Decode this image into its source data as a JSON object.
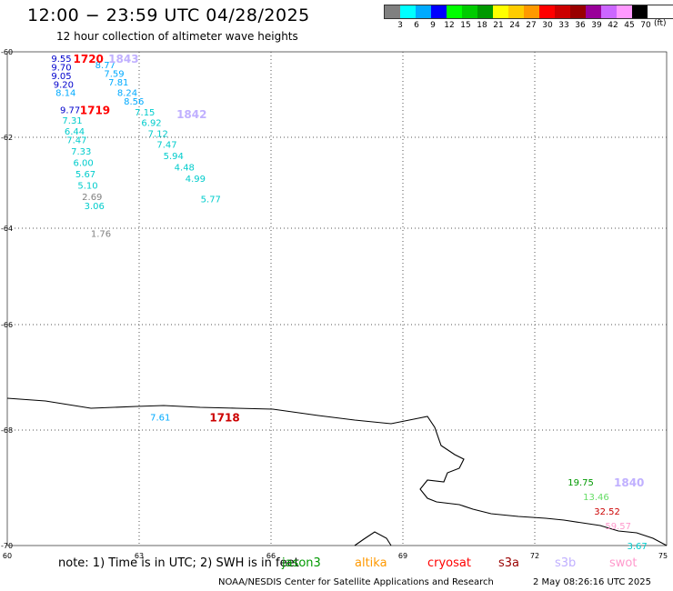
{
  "title": "12:00 − 23:59 UTC 04/28/2025",
  "subtitle": "12 hour collection of altimeter wave heights",
  "legend": {
    "colors": [
      "#808080",
      "#00ffff",
      "#00aaff",
      "#0000ff",
      "#00ff00",
      "#00cc00",
      "#009900",
      "#ffff00",
      "#ffcc00",
      "#ff9900",
      "#ff0000",
      "#cc0000",
      "#990000",
      "#990099",
      "#cc66ff",
      "#ff99ff",
      "#000000"
    ],
    "labels": [
      "3",
      "6",
      "9",
      "12",
      "15",
      "18",
      "21",
      "24",
      "27",
      "30",
      "33",
      "36",
      "39",
      "42",
      "45",
      "70"
    ],
    "unit": "(ft)"
  },
  "axes": {
    "lon_labels": [
      "60",
      "63",
      "66",
      "69",
      "72",
      "75"
    ],
    "lat_labels": [
      "-60",
      "-62",
      "-64",
      "-66",
      "-68",
      "-70"
    ]
  },
  "observations": [
    {
      "text": "9.55",
      "color": "#0000cc",
      "lon": 61.0,
      "lat": -60.15
    },
    {
      "text": "9.70",
      "color": "#0000cc",
      "lon": 61.0,
      "lat": -60.35
    },
    {
      "text": "9.05",
      "color": "#0000cc",
      "lon": 61.0,
      "lat": -60.55
    },
    {
      "text": "9.20",
      "color": "#0000cc",
      "lon": 61.05,
      "lat": -60.75
    },
    {
      "text": "8.14",
      "color": "#00aaff",
      "lon": 61.1,
      "lat": -60.95
    },
    {
      "text": "8.77",
      "color": "#00aaff",
      "lon": 62.0,
      "lat": -60.3
    },
    {
      "text": "7.59",
      "color": "#00aaff",
      "lon": 62.2,
      "lat": -60.5
    },
    {
      "text": "7.81",
      "color": "#00aaff",
      "lon": 62.3,
      "lat": -60.7
    },
    {
      "text": "8.24",
      "color": "#00aaff",
      "lon": 62.5,
      "lat": -60.95
    },
    {
      "text": "8.56",
      "color": "#00aaff",
      "lon": 62.65,
      "lat": -61.15
    },
    {
      "text": "9.77",
      "color": "#0000cc",
      "lon": 61.2,
      "lat": -61.35
    },
    {
      "text": "7.15",
      "color": "#00cccc",
      "lon": 62.9,
      "lat": -61.4
    },
    {
      "text": "7.31",
      "color": "#00cccc",
      "lon": 61.25,
      "lat": -61.6
    },
    {
      "text": "6.92",
      "color": "#00cccc",
      "lon": 63.05,
      "lat": -61.65
    },
    {
      "text": "6.44",
      "color": "#00cccc",
      "lon": 61.3,
      "lat": -61.85
    },
    {
      "text": "7.12",
      "color": "#00cccc",
      "lon": 63.2,
      "lat": -61.9
    },
    {
      "text": "7.47",
      "color": "#00cccc",
      "lon": 61.35,
      "lat": -62.05
    },
    {
      "text": "7.47",
      "color": "#00cccc",
      "lon": 63.4,
      "lat": -62.15
    },
    {
      "text": "7.33",
      "color": "#00cccc",
      "lon": 61.45,
      "lat": -62.3
    },
    {
      "text": "5.94",
      "color": "#00cccc",
      "lon": 63.55,
      "lat": -62.4
    },
    {
      "text": "6.00",
      "color": "#00cccc",
      "lon": 61.5,
      "lat": -62.55
    },
    {
      "text": "4.48",
      "color": "#00cccc",
      "lon": 63.8,
      "lat": -62.65
    },
    {
      "text": "5.67",
      "color": "#00cccc",
      "lon": 61.55,
      "lat": -62.8
    },
    {
      "text": "4.99",
      "color": "#00cccc",
      "lon": 64.05,
      "lat": -62.9
    },
    {
      "text": "5.10",
      "color": "#00cccc",
      "lon": 61.6,
      "lat": -63.05
    },
    {
      "text": "2.69",
      "color": "#808080",
      "lon": 61.7,
      "lat": -63.3
    },
    {
      "text": "5.77",
      "color": "#00cccc",
      "lon": 64.4,
      "lat": -63.35
    },
    {
      "text": "3.06",
      "color": "#00cccc",
      "lon": 61.75,
      "lat": -63.5
    },
    {
      "text": "1.76",
      "color": "#808080",
      "lon": 61.9,
      "lat": -64.1
    },
    {
      "text": "7.61",
      "color": "#00aaff",
      "lon": 63.25,
      "lat": -67.75
    },
    {
      "text": "19.75",
      "color": "#009900",
      "lon": 72.75,
      "lat": -68.9
    },
    {
      "text": "13.46",
      "color": "#66dd66",
      "lon": 73.1,
      "lat": -69.15
    },
    {
      "text": "32.52",
      "color": "#cc0000",
      "lon": 73.35,
      "lat": -69.4
    },
    {
      "text": "59.57",
      "color": "#ff99cc",
      "lon": 73.6,
      "lat": -69.65
    },
    {
      "text": "3.67",
      "color": "#00cccc",
      "lon": 74.1,
      "lat": -70.0
    }
  ],
  "pass_labels": [
    {
      "text": "1720",
      "color": "#ff0000",
      "lon": 61.5,
      "lat": -60.15
    },
    {
      "text": "1843",
      "color": "#c0b0ff",
      "lon": 62.3,
      "lat": -60.15
    },
    {
      "text": "1719",
      "color": "#ff0000",
      "lon": 61.65,
      "lat": -61.35
    },
    {
      "text": "1842",
      "color": "#c0b0ff",
      "lon": 63.85,
      "lat": -61.45
    },
    {
      "text": "1718",
      "color": "#cc0000",
      "lon": 64.6,
      "lat": -67.75
    },
    {
      "text": "1840",
      "color": "#c0b0ff",
      "lon": 73.8,
      "lat": -68.9
    }
  ],
  "note": "note: 1) Time is in UTC; 2) SWH is in feet",
  "satellites": [
    {
      "name": "jason3",
      "color": "#009900"
    },
    {
      "name": "altika",
      "color": "#ff9900"
    },
    {
      "name": "cryosat",
      "color": "#ff0000"
    },
    {
      "name": "s3a",
      "color": "#990000"
    },
    {
      "name": "s3b",
      "color": "#c0b0ff"
    },
    {
      "name": "swot",
      "color": "#ff99cc"
    }
  ],
  "footer": "NOAA/NESDIS Center for Satellite Applications and Research",
  "footer_time": "2 May 08:26:16 UTC 2025"
}
